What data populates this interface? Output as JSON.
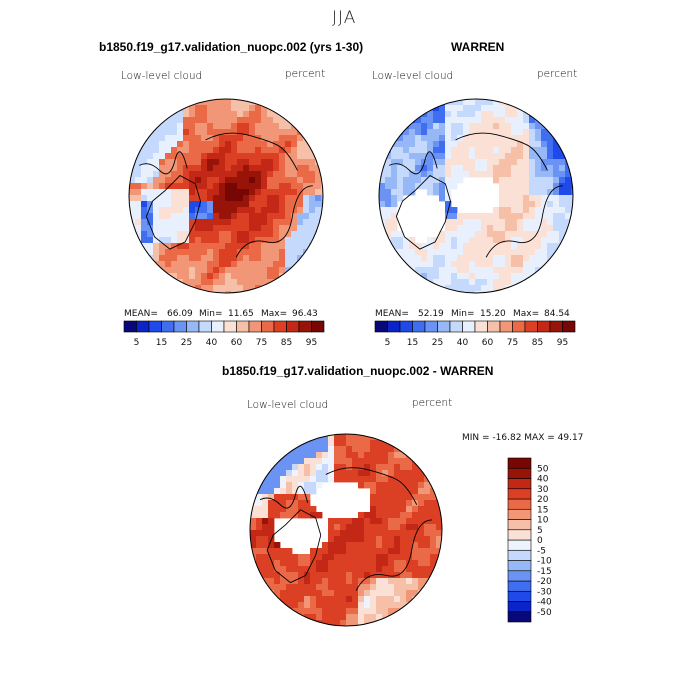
{
  "figure": {
    "season": "JJA"
  },
  "panels": {
    "model": {
      "title": "b1850.f19_g17.validation_nuopc.002 (yrs 1-30)",
      "field": "Low-level cloud",
      "units": "percent",
      "stats": {
        "mean_label": "MEAN=",
        "mean": "66.09",
        "min_label": "Min=",
        "min": "11.65",
        "max_label": "Max=",
        "max": "96.43"
      }
    },
    "obs": {
      "title": "WARREN",
      "field": "Low-level cloud",
      "units": "percent",
      "stats": {
        "mean_label": "MEAN=",
        "mean": "52.19",
        "min_label": "Min=",
        "min": "15.20",
        "max_label": "Max=",
        "max": "84.54"
      }
    },
    "diff": {
      "title": "b1850.f19_g17.validation_nuopc.002 - WARREN",
      "field": "Low-level cloud",
      "units": "percent",
      "stats_text": "MIN = -16.82 MAX =  49.17"
    }
  },
  "chart_data": [
    {
      "type": "heatmap",
      "projection": "north-polar-stereographic",
      "title": "b1850.f19_g17.validation_nuopc.002 (yrs 1-30)",
      "variable": "Low-level cloud",
      "units": "percent",
      "mean": 66.09,
      "min": 11.65,
      "max": 96.43,
      "colorbar": {
        "levels": [
          5,
          10,
          15,
          20,
          25,
          30,
          40,
          50,
          60,
          70,
          75,
          80,
          85,
          90,
          95
        ],
        "tick_labels": [
          "5",
          "15",
          "25",
          "40",
          "60",
          "75",
          "85",
          "95"
        ],
        "colors": [
          "#08087a",
          "#0a24c8",
          "#1f49e8",
          "#3f6ef0",
          "#6a93f4",
          "#96b8f7",
          "#c4d9fb",
          "#e8f0fd",
          "#fbe1d5",
          "#f6bfa7",
          "#f19777",
          "#ea6a47",
          "#db4025",
          "#c22815",
          "#981409",
          "#760704"
        ]
      }
    },
    {
      "type": "heatmap",
      "projection": "north-polar-stereographic",
      "title": "WARREN",
      "variable": "Low-level cloud",
      "units": "percent",
      "mean": 52.19,
      "min": 15.2,
      "max": 84.54,
      "colorbar": {
        "levels": [
          5,
          10,
          15,
          20,
          25,
          30,
          40,
          50,
          60,
          70,
          75,
          80,
          85,
          90,
          95
        ],
        "tick_labels": [
          "5",
          "15",
          "25",
          "40",
          "60",
          "75",
          "85",
          "95"
        ],
        "colors": [
          "#08087a",
          "#0a24c8",
          "#1f49e8",
          "#3f6ef0",
          "#6a93f4",
          "#96b8f7",
          "#c4d9fb",
          "#e8f0fd",
          "#fbe1d5",
          "#f6bfa7",
          "#f19777",
          "#ea6a47",
          "#db4025",
          "#c22815",
          "#981409",
          "#760704"
        ]
      }
    },
    {
      "type": "heatmap",
      "projection": "north-polar-stereographic",
      "title": "b1850.f19_g17.validation_nuopc.002 - WARREN",
      "variable": "Low-level cloud",
      "units": "percent",
      "min": -16.82,
      "max": 49.17,
      "colorbar": {
        "levels": [
          -50,
          -40,
          -30,
          -20,
          -15,
          -10,
          -5,
          0,
          5,
          10,
          15,
          20,
          30,
          40,
          50
        ],
        "tick_labels": [
          "-50",
          "-40",
          "-30",
          "-20",
          "-15",
          "-10",
          "-5",
          "0",
          "5",
          "10",
          "15",
          "20",
          "30",
          "40",
          "50"
        ],
        "colors": [
          "#08087a",
          "#0a24c8",
          "#1f49e8",
          "#3f6ef0",
          "#6a93f4",
          "#96b8f7",
          "#c4d9fb",
          "#eef3fd",
          "#fbe1d5",
          "#f6bfa7",
          "#f19777",
          "#ea6a47",
          "#db4025",
          "#c22815",
          "#981409",
          "#760704"
        ]
      }
    }
  ]
}
